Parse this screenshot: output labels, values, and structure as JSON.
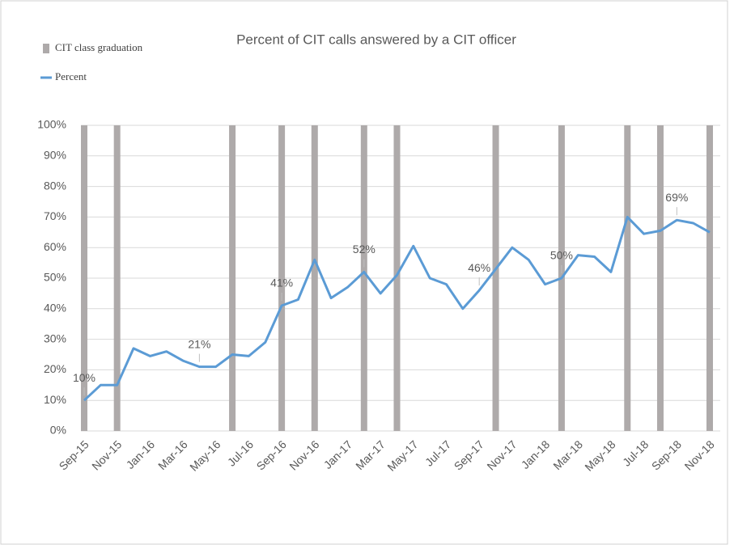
{
  "chart_data": {
    "type": "combo",
    "title": "Percent of CIT calls answered by a CIT officer",
    "categories": [
      "Sep-15",
      null,
      "Nov-15",
      null,
      "Jan-16",
      null,
      "Mar-16",
      null,
      "May-16",
      null,
      "Jul-16",
      null,
      "Sep-16",
      null,
      "Nov-16",
      null,
      "Jan-17",
      null,
      "Mar-17",
      null,
      "May-17",
      null,
      "Jul-17",
      null,
      "Sep-17",
      null,
      "Nov-17",
      null,
      "Jan-18",
      null,
      "Mar-18",
      null,
      "May-18",
      null,
      "Jul-18",
      null,
      "Sep-18",
      null,
      "Nov-18"
    ],
    "series": [
      {
        "name": "CIT class graduation",
        "type": "bar",
        "color": "#aeaaaa",
        "values": [
          100,
          null,
          100,
          null,
          null,
          null,
          null,
          null,
          null,
          100,
          null,
          null,
          100,
          null,
          100,
          null,
          null,
          100,
          null,
          100,
          null,
          null,
          null,
          null,
          null,
          100,
          null,
          null,
          null,
          100,
          null,
          null,
          null,
          100,
          null,
          100,
          null,
          null,
          100
        ]
      },
      {
        "name": "Percent",
        "type": "line",
        "color": "#5b9bd5",
        "values": [
          10,
          15,
          15,
          27,
          24.5,
          26,
          23,
          21,
          21,
          25,
          24.5,
          29,
          41,
          43,
          56,
          43.5,
          47,
          52,
          45,
          51,
          60.5,
          50,
          48,
          40,
          46,
          53,
          60,
          56,
          48,
          50,
          57.5,
          57,
          52,
          70,
          64.5,
          65.5,
          69,
          68,
          65
        ],
        "value_labels": [
          "10%",
          null,
          null,
          null,
          null,
          null,
          null,
          "21%",
          null,
          null,
          null,
          null,
          "41%",
          null,
          null,
          null,
          null,
          "52%",
          null,
          null,
          null,
          null,
          null,
          null,
          "46%",
          null,
          null,
          null,
          null,
          "50%",
          null,
          null,
          null,
          null,
          null,
          null,
          "69%",
          null,
          null
        ]
      }
    ],
    "ylim": [
      0,
      100
    ],
    "yticks": [
      {
        "value": 0,
        "label": "0%"
      },
      {
        "value": 10,
        "label": "10%"
      },
      {
        "value": 20,
        "label": "20%"
      },
      {
        "value": 30,
        "label": "30%"
      },
      {
        "value": 40,
        "label": "40%"
      },
      {
        "value": 50,
        "label": "50%"
      },
      {
        "value": 60,
        "label": "60%"
      },
      {
        "value": 70,
        "label": "70%"
      },
      {
        "value": 80,
        "label": "80%"
      },
      {
        "value": 90,
        "label": "90%"
      },
      {
        "value": 100,
        "label": "100%"
      }
    ],
    "grid": true,
    "legend": "top-left"
  }
}
